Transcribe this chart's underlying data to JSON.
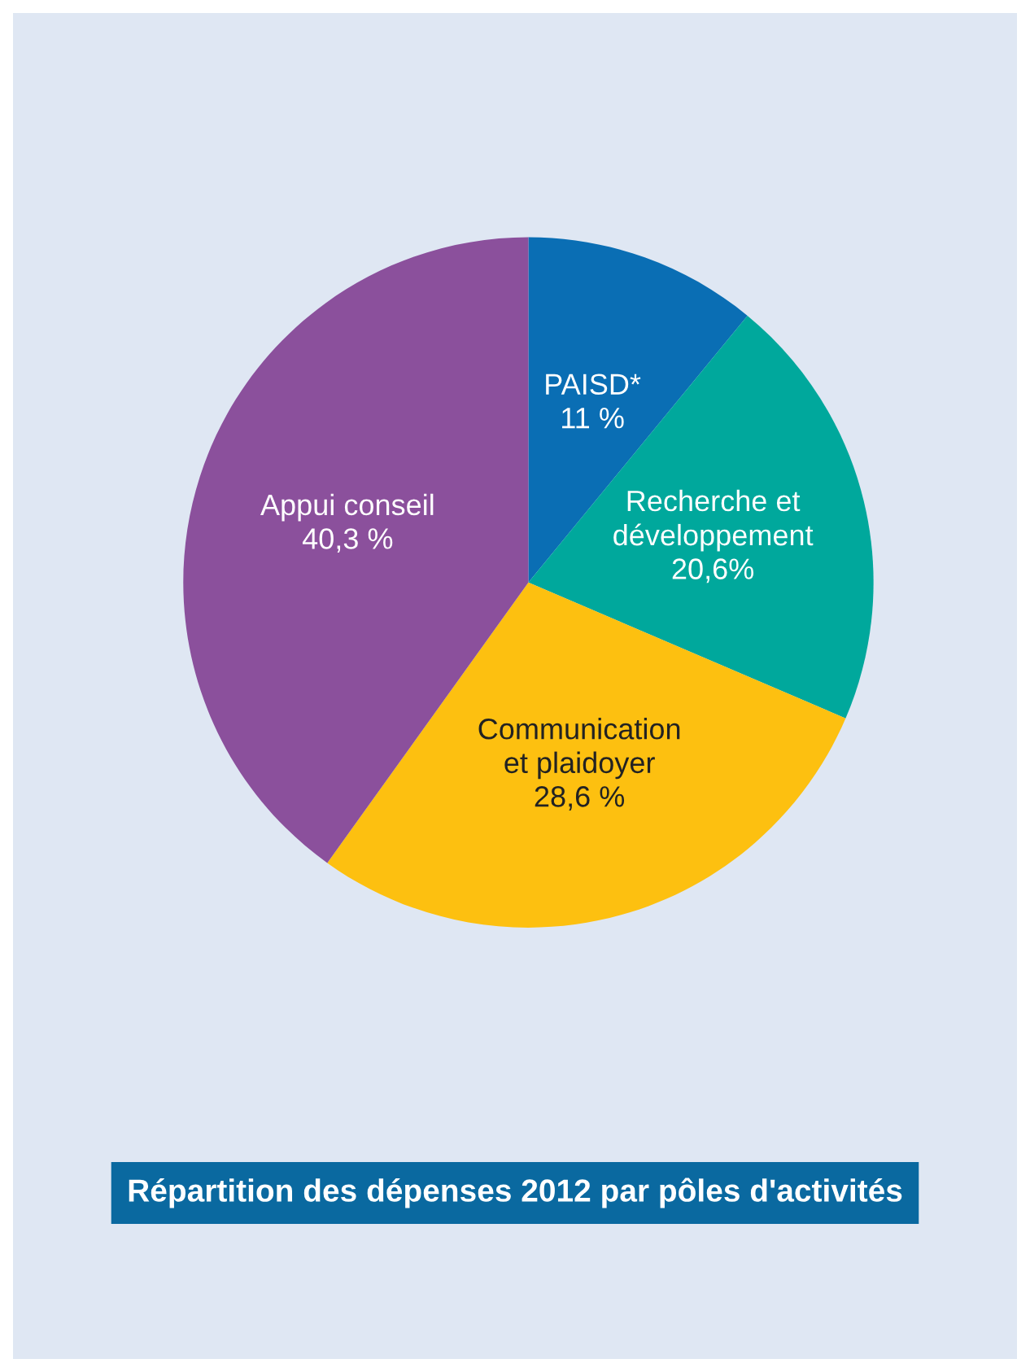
{
  "chart_data": {
    "type": "pie",
    "title": "Répartition des dépenses 2012 par pôles d'activités",
    "categories": [
      "PAISD*",
      "Recherche et\ndéveloppement",
      "Communication\net plaidoyer",
      "Appui conseil"
    ],
    "values": [
      11,
      20.6,
      28.6,
      40.3
    ],
    "value_labels": [
      "11 %",
      "20,6%",
      "28,6 %",
      "40,3 %"
    ],
    "colors": [
      "#0a6eb4",
      "#00a89c",
      "#fdc010",
      "#8b509c"
    ]
  }
}
